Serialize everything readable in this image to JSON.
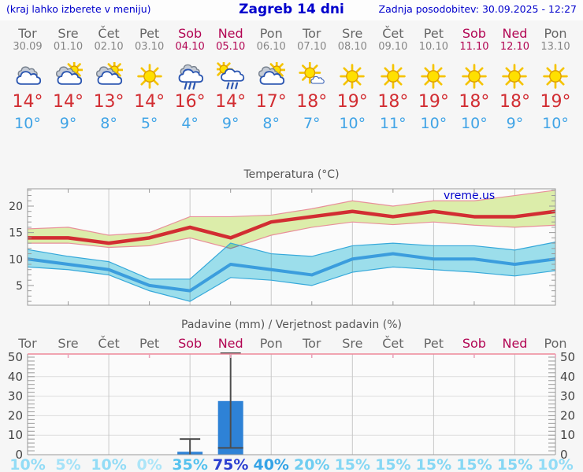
{
  "header": {
    "hint": "(kraj lahko izberete v meniju)",
    "title": "Zagreb 14 dni",
    "updated": "Zadnja posodobitev: 30.09.2025 - 12:27"
  },
  "watermark": "vreme.us",
  "colors": {
    "header_text": "#0000cc",
    "weekday_text": "#666666",
    "date_text": "#858585",
    "weekend_text": "#b20553",
    "max_temp_text": "#d22d32",
    "min_temp_text": "#41a4e6",
    "chart_title": "#555555",
    "axis_text": "#444444",
    "axis_line": "#999999",
    "grid_line": "#c8c8c8",
    "precip_top_line": "#ee8899",
    "precip_minor_tick": "#e8a0b8",
    "bar_fill": "#2e82d6",
    "whisker": "#4d4d4d",
    "max_band_fill": "#dcedaa",
    "max_band_edge": "#e8909a",
    "min_band_fill": "#9fe2ef",
    "min_band_edge": "#35a8da",
    "max_line": "#d22d32",
    "min_line": "#3b9ddd",
    "prob_colors": {
      "0": "#ace5f8",
      "5": "#a5e2f8",
      "10": "#93dcf6",
      "15": "#86d7f4",
      "20": "#6fcdf1",
      "35": "#56c2ee",
      "40": "#35a3e6",
      "75": "#2b3fd0"
    }
  },
  "days": [
    {
      "name": "Tor",
      "date": "30.09",
      "weekend": false,
      "icon": "cloudy",
      "max_label": "14°",
      "min_label": "10°",
      "prob_label": "10%"
    },
    {
      "name": "Sre",
      "date": "01.10",
      "weekend": false,
      "icon": "partly-cloudy",
      "max_label": "14°",
      "min_label": "9°",
      "prob_label": "5%"
    },
    {
      "name": "Čet",
      "date": "02.10",
      "weekend": false,
      "icon": "partly-cloudy",
      "max_label": "13°",
      "min_label": "8°",
      "prob_label": "10%"
    },
    {
      "name": "Pet",
      "date": "03.10",
      "weekend": false,
      "icon": "sunny",
      "max_label": "14°",
      "min_label": "5°",
      "prob_label": "0%"
    },
    {
      "name": "Sob",
      "date": "04.10",
      "weekend": true,
      "icon": "rain",
      "max_label": "16°",
      "min_label": "4°",
      "prob_label": "35%"
    },
    {
      "name": "Ned",
      "date": "05.10",
      "weekend": true,
      "icon": "sun-rain",
      "max_label": "14°",
      "min_label": "9°",
      "prob_label": "75%"
    },
    {
      "name": "Pon",
      "date": "06.10",
      "weekend": false,
      "icon": "partly-cloudy",
      "max_label": "17°",
      "min_label": "8°",
      "prob_label": "40%"
    },
    {
      "name": "Tor",
      "date": "07.10",
      "weekend": false,
      "icon": "mostly-sunny",
      "max_label": "18°",
      "min_label": "7°",
      "prob_label": "20%"
    },
    {
      "name": "Sre",
      "date": "08.10",
      "weekend": false,
      "icon": "sunny",
      "max_label": "19°",
      "min_label": "10°",
      "prob_label": "15%"
    },
    {
      "name": "Čet",
      "date": "09.10",
      "weekend": false,
      "icon": "sunny",
      "max_label": "18°",
      "min_label": "11°",
      "prob_label": "15%"
    },
    {
      "name": "Pet",
      "date": "10.10",
      "weekend": false,
      "icon": "sunny",
      "max_label": "19°",
      "min_label": "10°",
      "prob_label": "15%"
    },
    {
      "name": "Sob",
      "date": "11.10",
      "weekend": true,
      "icon": "sunny",
      "max_label": "18°",
      "min_label": "10°",
      "prob_label": "15%"
    },
    {
      "name": "Ned",
      "date": "12.10",
      "weekend": true,
      "icon": "sunny",
      "max_label": "18°",
      "min_label": "9°",
      "prob_label": "15%"
    },
    {
      "name": "Pon",
      "date": "13.10",
      "weekend": false,
      "icon": "sunny",
      "max_label": "19°",
      "min_label": "10°",
      "prob_label": "10%"
    }
  ],
  "chart_data": [
    {
      "type": "line",
      "title": "Temperatura (°C)",
      "categories": [
        "Tor 30.09",
        "Sre 01.10",
        "Čet 02.10",
        "Pet 03.10",
        "Sob 04.10",
        "Ned 05.10",
        "Pon 06.10",
        "Tor 07.10",
        "Sre 08.10",
        "Čet 09.10",
        "Pet 10.10",
        "Sob 11.10",
        "Ned 12.10",
        "Pon 13.10"
      ],
      "yticks": [
        5,
        10,
        15,
        20
      ],
      "ylim": [
        1.3,
        23.3
      ],
      "grid": "vertical-every-2-days",
      "series": [
        {
          "name": "max",
          "values": [
            14,
            14,
            13,
            14,
            16,
            14,
            17,
            18,
            19,
            18,
            19,
            18,
            18,
            19
          ],
          "band_upper": [
            15.7,
            16,
            14.5,
            15,
            18,
            18,
            18.3,
            19.5,
            21,
            20,
            21,
            21,
            22,
            23
          ],
          "band_lower": [
            13,
            13,
            12.2,
            12.5,
            14,
            12,
            14.5,
            16,
            17,
            16.5,
            17,
            16.4,
            16,
            16.4
          ]
        },
        {
          "name": "min",
          "values": [
            10,
            9,
            8,
            5,
            4,
            9,
            8,
            7,
            10,
            11,
            10,
            10,
            9,
            10
          ],
          "band_upper": [
            11.8,
            10.5,
            9.5,
            6.2,
            6.2,
            13,
            11,
            10.5,
            12.5,
            13,
            12.5,
            12.5,
            11.7,
            13.2
          ],
          "band_lower": [
            8.5,
            8,
            7,
            4,
            2,
            6.5,
            6,
            5,
            7.5,
            8.5,
            8,
            7.5,
            6.8,
            7.8
          ]
        }
      ]
    },
    {
      "type": "bar",
      "title": "Padavine (mm) / Verjetnost padavin (%)",
      "categories": [
        "Tor",
        "Sre",
        "Čet",
        "Pet",
        "Sob",
        "Ned",
        "Pon",
        "Tor",
        "Sre",
        "Čet",
        "Pet",
        "Sob",
        "Ned",
        "Pon"
      ],
      "weekend_flags": [
        false,
        false,
        false,
        false,
        true,
        true,
        false,
        false,
        false,
        false,
        false,
        true,
        true,
        false
      ],
      "values": [
        0,
        0,
        0,
        0,
        1.5,
        27.5,
        0,
        0,
        0,
        0,
        0,
        0,
        0,
        0
      ],
      "whisker_high": [
        null,
        null,
        null,
        null,
        8,
        52,
        null,
        null,
        null,
        null,
        null,
        null,
        null,
        null
      ],
      "whisker_low": [
        null,
        null,
        null,
        null,
        0,
        3.5,
        null,
        null,
        null,
        null,
        null,
        null,
        null,
        null
      ],
      "probabilities": [
        10,
        5,
        10,
        0,
        35,
        75,
        40,
        20,
        15,
        15,
        15,
        15,
        15,
        10
      ],
      "yticks": [
        0,
        10,
        20,
        30,
        40,
        50
      ],
      "ylim": [
        0,
        51.5
      ],
      "grid": "horizontal-10-to-40"
    }
  ]
}
